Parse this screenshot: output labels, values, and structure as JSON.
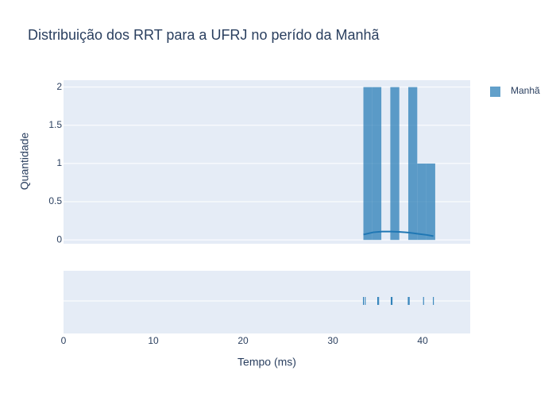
{
  "chart_data": {
    "type": "histogram",
    "title": "Distribuição dos RRT para a UFRJ no perído da Manhã",
    "xlabel": "Tempo (ms)",
    "ylabel": "Quantidade",
    "bins": [
      33.4,
      34.4,
      35.4,
      36.4,
      37.4,
      38.4,
      39.4,
      40.4,
      41.4
    ],
    "series": [
      {
        "name": "Manhã",
        "color": "#1f77b4",
        "values": [
          2,
          2,
          0,
          2,
          0,
          2,
          1,
          1
        ]
      }
    ],
    "kde": {
      "x": [
        33.4,
        34.5,
        35.5,
        36.5,
        37.5,
        38.5,
        39.5,
        40.5,
        41.2
      ],
      "values": [
        0.07,
        0.1,
        0.11,
        0.11,
        0.105,
        0.095,
        0.08,
        0.065,
        0.05
      ]
    },
    "rug": [
      33.4,
      33.6,
      35.0,
      35.1,
      36.5,
      36.6,
      38.4,
      38.5,
      40.1,
      41.2
    ],
    "xlim": [
      0,
      45.3
    ],
    "xticks": [
      0,
      10,
      20,
      30,
      40
    ],
    "ylim": [
      -0.05,
      2.09
    ],
    "yticks": [
      0,
      0.5,
      1,
      1.5,
      2
    ],
    "grid": true
  }
}
